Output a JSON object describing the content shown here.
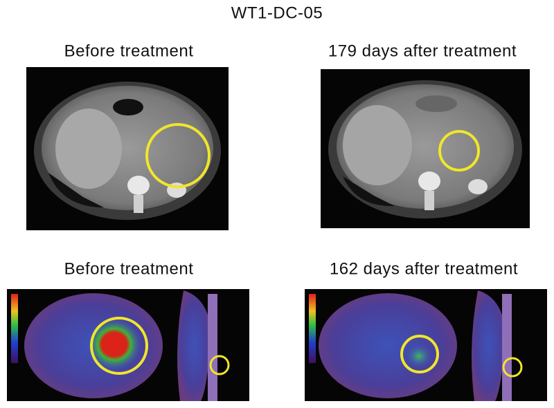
{
  "title": "WT1-DC-05",
  "panels": [
    {
      "label": "Before treatment"
    },
    {
      "label": "179 days after treatment"
    },
    {
      "label": "Before treatment"
    },
    {
      "label": "162 days after treatment"
    }
  ]
}
